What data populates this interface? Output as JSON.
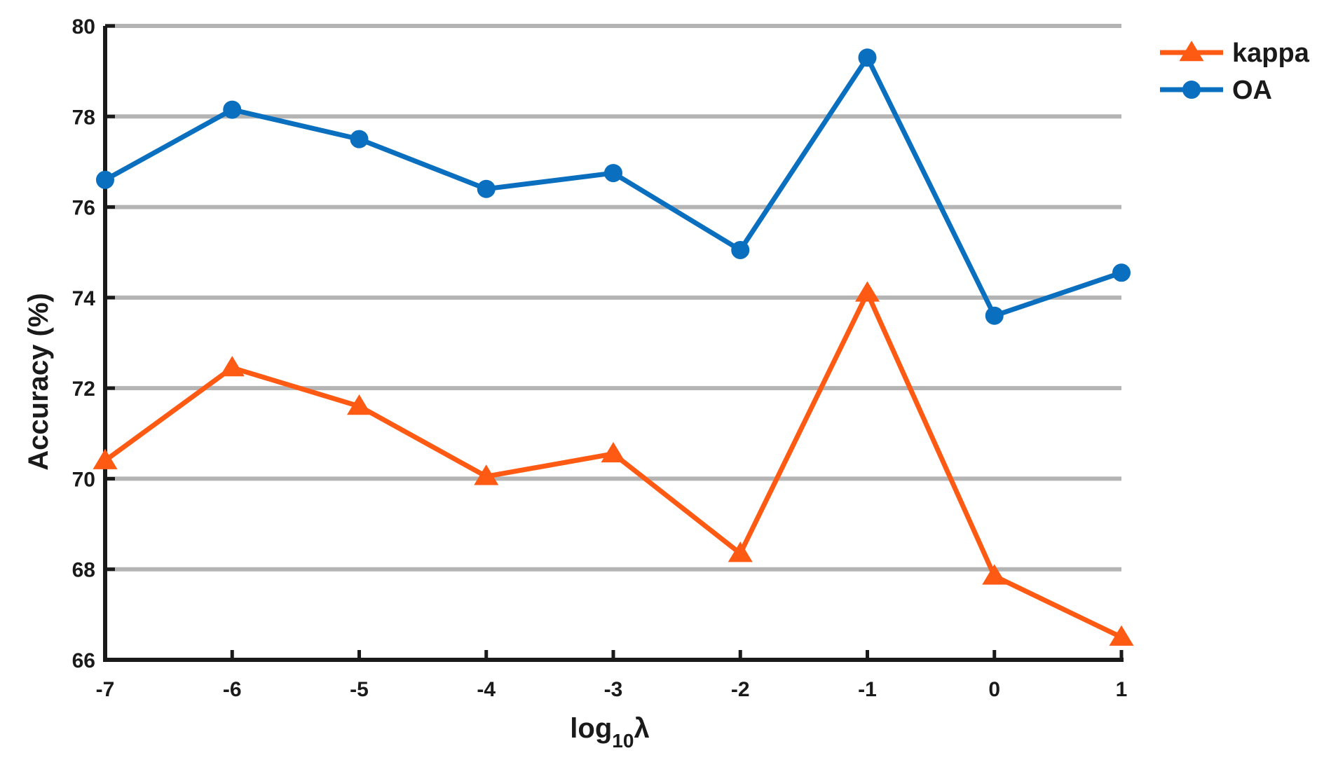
{
  "chart_data": {
    "type": "line",
    "x": [
      -7,
      -6,
      -5,
      -4,
      -3,
      -2,
      -1,
      0,
      1
    ],
    "xlabel": {
      "base": "log",
      "sub": "10",
      "symbol": "λ"
    },
    "ylabel": "Accuracy (%)",
    "ylim": [
      66,
      80
    ],
    "yticks": [
      66,
      68,
      70,
      72,
      74,
      76,
      78,
      80
    ],
    "xlim": [
      -7,
      1
    ],
    "grid": "horizontal",
    "legend_position": "top-right",
    "series": [
      {
        "name": "kappa",
        "color": "#ff5a14",
        "marker": "triangle",
        "values": [
          70.4,
          72.45,
          71.6,
          70.05,
          70.55,
          68.35,
          74.1,
          67.85,
          66.5
        ]
      },
      {
        "name": "OA",
        "color": "#0a6fbe",
        "marker": "circle",
        "values": [
          76.6,
          78.15,
          77.5,
          76.4,
          76.75,
          75.05,
          79.3,
          73.6,
          74.55
        ]
      }
    ]
  }
}
